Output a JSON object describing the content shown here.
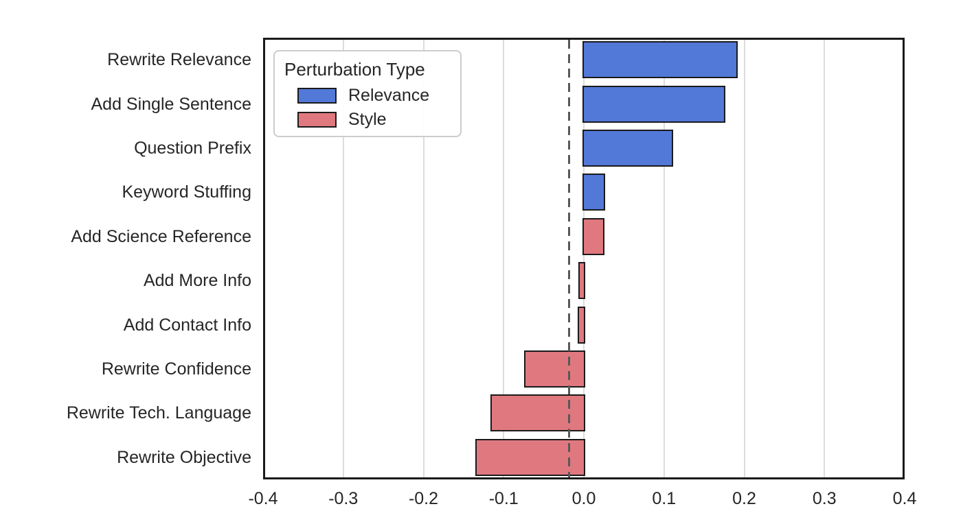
{
  "colors": {
    "relevance_blue": "#5278d8",
    "style_red": "#e0787f",
    "bar_edge": "#1a1a1a",
    "grid": "#dcdcdc",
    "refline": "#595959",
    "text": "#262626"
  },
  "legend": {
    "title": "Perturbation Type",
    "entries": [
      {
        "label": "Relevance",
        "group": "Relevance"
      },
      {
        "label": "Style",
        "group": "Style"
      }
    ]
  },
  "chart_data": {
    "type": "bar",
    "orientation": "horizontal",
    "title": "",
    "xlabel": "",
    "ylabel": "",
    "xlim": [
      -0.4,
      0.4
    ],
    "x_ticks": [
      "-0.4",
      "-0.3",
      "-0.2",
      "-0.1",
      "0.0",
      "0.1",
      "0.2",
      "0.3",
      "0.4"
    ],
    "x_tick_values": [
      -0.4,
      -0.3,
      -0.2,
      -0.1,
      0.0,
      0.1,
      0.2,
      0.3,
      0.4
    ],
    "grid": "vertical",
    "reference_line_x": -0.018,
    "legend_position": "upper left",
    "categories": [
      "Rewrite Relevance",
      "Add Single Sentence",
      "Question Prefix",
      "Keyword Stuffing",
      "Add Science Reference",
      "Add More Info",
      "Add Contact Info",
      "Rewrite Confidence",
      "Rewrite Tech. Language",
      "Rewrite Objective"
    ],
    "values": [
      0.19,
      0.175,
      0.11,
      0.025,
      0.024,
      -0.005,
      -0.006,
      -0.073,
      -0.115,
      -0.134
    ],
    "groups": [
      "Relevance",
      "Relevance",
      "Relevance",
      "Relevance",
      "Style",
      "Style",
      "Style",
      "Style",
      "Style",
      "Style"
    ]
  }
}
